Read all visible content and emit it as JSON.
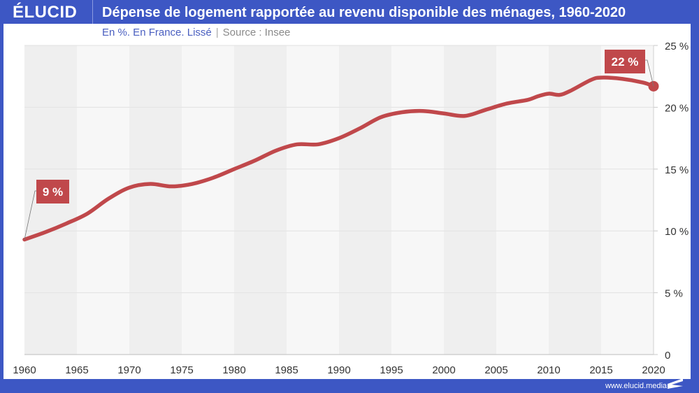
{
  "header": {
    "logo": "ÉLUCID",
    "title": "Dépense de logement rapportée au revenu disponible des ménages, 1960-2020"
  },
  "subtitle": {
    "main": "En %. En France. Lissé",
    "separator": "|",
    "source": "Source : Insee"
  },
  "footer": {
    "url": "www.elucid.media"
  },
  "colors": {
    "brand": "#3d57c4",
    "line": "#c0484b",
    "label_bg": "#c0484b"
  },
  "chart_data": {
    "type": "line",
    "title": "Dépense de logement rapportée au revenu disponible des ménages, 1960-2020",
    "subtitle": "En %. En France. Lissé",
    "source": "Source : Insee",
    "xlabel": "",
    "ylabel": "",
    "xlim": [
      1960,
      2020
    ],
    "ylim": [
      0,
      25
    ],
    "x_ticks": [
      "1960",
      "1965",
      "1970",
      "1975",
      "1980",
      "1985",
      "1990",
      "1995",
      "2000",
      "2005",
      "2010",
      "2015",
      "2020"
    ],
    "y_ticks": [
      {
        "value": 0,
        "label": "0"
      },
      {
        "value": 5,
        "label": "5 %"
      },
      {
        "value": 10,
        "label": "10 %"
      },
      {
        "value": 15,
        "label": "15 %"
      },
      {
        "value": 20,
        "label": "20 %"
      },
      {
        "value": 25,
        "label": "25 %"
      }
    ],
    "y_axis_side": "right",
    "grid": true,
    "alternating_bands_every_years": 5,
    "series": [
      {
        "name": "Dépense de logement / revenu disponible",
        "x": [
          1960,
          1962,
          1964,
          1966,
          1968,
          1970,
          1972,
          1974,
          1976,
          1978,
          1980,
          1982,
          1984,
          1986,
          1988,
          1990,
          1992,
          1994,
          1996,
          1998,
          2000,
          2002,
          2004,
          2006,
          2008,
          2009,
          2010,
          2011,
          2012,
          2014,
          2015,
          2017,
          2019,
          2020
        ],
        "values": [
          9.3,
          9.9,
          10.6,
          11.4,
          12.6,
          13.5,
          13.8,
          13.6,
          13.8,
          14.3,
          15.0,
          15.7,
          16.5,
          17.0,
          17.0,
          17.5,
          18.3,
          19.2,
          19.6,
          19.7,
          19.5,
          19.3,
          19.8,
          20.3,
          20.6,
          20.9,
          21.1,
          21.0,
          21.3,
          22.2,
          22.4,
          22.3,
          22.0,
          21.7
        ]
      }
    ],
    "annotations": [
      {
        "x": 1960,
        "value": 9.3,
        "label": "9 %"
      },
      {
        "x": 2020,
        "value": 21.7,
        "label": "22 %"
      }
    ]
  }
}
